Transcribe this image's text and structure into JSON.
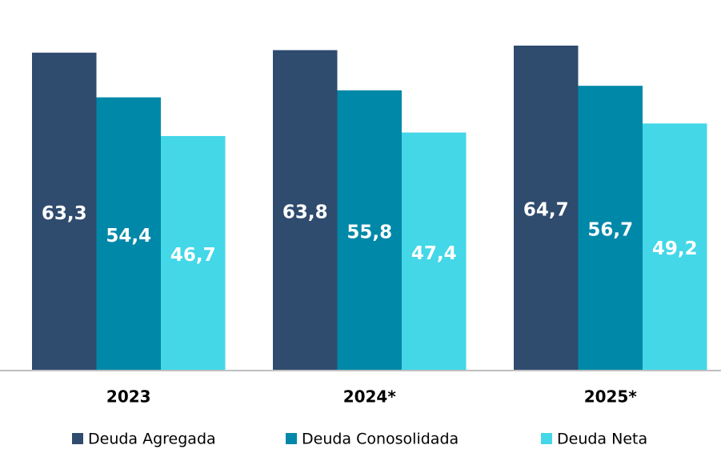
{
  "chart_data": {
    "type": "bar",
    "categories": [
      "2023",
      "2024*",
      "2025*"
    ],
    "series": [
      {
        "name": "Deuda Agregada",
        "color": "#2f4b6e",
        "values": [
          63.3,
          63.8,
          64.7
        ],
        "value_labels": [
          "63,3",
          "63,8",
          "64,7"
        ]
      },
      {
        "name": "Deuda Conosolidada",
        "color": "#0088a8",
        "values": [
          54.4,
          55.8,
          56.7
        ],
        "value_labels": [
          "54,4",
          "55,8",
          "56,7"
        ]
      },
      {
        "name": "Deuda Neta",
        "color": "#43d7e8",
        "values": [
          46.7,
          47.4,
          49.2
        ],
        "value_labels": [
          "46,7",
          "47,4",
          "49,2"
        ]
      }
    ],
    "legend": "bottom"
  }
}
